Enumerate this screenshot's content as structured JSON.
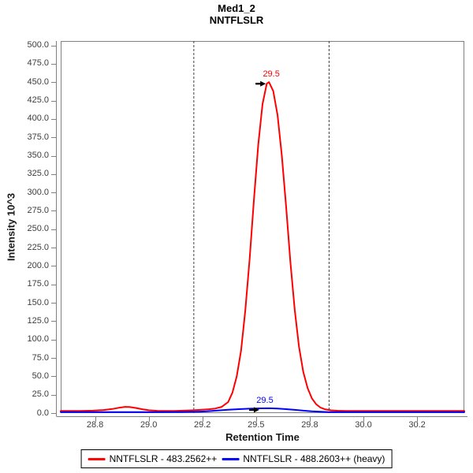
{
  "header": {
    "title_line1": "Med1_2",
    "title_line2": "NNTFLSLR"
  },
  "chart_data": {
    "type": "line",
    "title": "Med1_2 NNTFLSLR",
    "xlabel": "Retention Time",
    "ylabel": "Intensity 10^3",
    "xlim": [
      28.59,
      30.47
    ],
    "ylim": [
      0,
      506
    ],
    "grid": false,
    "legend_position": "bottom",
    "frame_color": "#808080",
    "tick_label_color": "#3d3d3d",
    "boundary_color": "#404040",
    "x_ticks": [
      {
        "value": 28.75,
        "label": "28.8"
      },
      {
        "value": 29.0,
        "label": "29.0"
      },
      {
        "value": 29.25,
        "label": "29.2"
      },
      {
        "value": 29.5,
        "label": "29.5"
      },
      {
        "value": 29.75,
        "label": "29.8"
      },
      {
        "value": 30.0,
        "label": "30.0"
      },
      {
        "value": 30.25,
        "label": "30.2"
      }
    ],
    "y_ticks": [
      {
        "value": 0,
        "label": "0.0"
      },
      {
        "value": 25,
        "label": "25.0"
      },
      {
        "value": 50,
        "label": "50.0"
      },
      {
        "value": 75,
        "label": "75.0"
      },
      {
        "value": 100,
        "label": "100.0"
      },
      {
        "value": 125,
        "label": "125.0"
      },
      {
        "value": 150,
        "label": "150.0"
      },
      {
        "value": 175,
        "label": "175.0"
      },
      {
        "value": 200,
        "label": "200.0"
      },
      {
        "value": 225,
        "label": "225.0"
      },
      {
        "value": 250,
        "label": "250.0"
      },
      {
        "value": 275,
        "label": "275.0"
      },
      {
        "value": 300,
        "label": "300.0"
      },
      {
        "value": 325,
        "label": "325.0"
      },
      {
        "value": 350,
        "label": "350.0"
      },
      {
        "value": 375,
        "label": "375.0"
      },
      {
        "value": 400,
        "label": "400.0"
      },
      {
        "value": 425,
        "label": "425.0"
      },
      {
        "value": 450,
        "label": "450.0"
      },
      {
        "value": 475,
        "label": "475.0"
      },
      {
        "value": 500,
        "label": "500.0"
      }
    ],
    "integration_boundaries": [
      29.21,
      29.84
    ],
    "series": [
      {
        "name": "NNTFLSLR - 483.2562++",
        "color": "#ff0000",
        "peak_rt": 29.5,
        "peak_height_10e3": 450,
        "points": [
          [
            28.59,
            3
          ],
          [
            28.68,
            3
          ],
          [
            28.74,
            3.3
          ],
          [
            28.79,
            4.2
          ],
          [
            28.83,
            5.6
          ],
          [
            28.86,
            7.2
          ],
          [
            28.89,
            8.5
          ],
          [
            28.91,
            8.4
          ],
          [
            28.94,
            7.0
          ],
          [
            28.97,
            5.2
          ],
          [
            29.0,
            3.9
          ],
          [
            29.04,
            3.1
          ],
          [
            29.08,
            3.0
          ],
          [
            29.12,
            3.0
          ],
          [
            29.16,
            3.3
          ],
          [
            29.2,
            3.8
          ],
          [
            29.24,
            4.4
          ],
          [
            29.28,
            5.2
          ],
          [
            29.31,
            6.2
          ],
          [
            29.34,
            8.5
          ],
          [
            29.37,
            15
          ],
          [
            29.39,
            28
          ],
          [
            29.41,
            50
          ],
          [
            29.43,
            85
          ],
          [
            29.45,
            140
          ],
          [
            29.47,
            210
          ],
          [
            29.49,
            290
          ],
          [
            29.51,
            365
          ],
          [
            29.53,
            420
          ],
          [
            29.55,
            448
          ],
          [
            29.56,
            450
          ],
          [
            29.58,
            438
          ],
          [
            29.6,
            405
          ],
          [
            29.62,
            350
          ],
          [
            29.64,
            280
          ],
          [
            29.66,
            205
          ],
          [
            29.68,
            140
          ],
          [
            29.7,
            90
          ],
          [
            29.72,
            56
          ],
          [
            29.74,
            34
          ],
          [
            29.76,
            20
          ],
          [
            29.78,
            12
          ],
          [
            29.8,
            7.5
          ],
          [
            29.82,
            5.2
          ],
          [
            29.85,
            3.8
          ],
          [
            29.88,
            3.2
          ],
          [
            29.92,
            3.0
          ],
          [
            30.0,
            3.0
          ],
          [
            30.1,
            3.0
          ],
          [
            30.2,
            3.0
          ],
          [
            30.3,
            3.0
          ],
          [
            30.4,
            3.0
          ],
          [
            30.47,
            3.0
          ]
        ]
      },
      {
        "name": "NNTFLSLR - 488.2603++ (heavy)",
        "color": "#0000ff",
        "peak_rt": 29.5,
        "peak_height_10e3": 6.5,
        "points": [
          [
            28.59,
            1.3
          ],
          [
            28.8,
            1.3
          ],
          [
            28.95,
            1.4
          ],
          [
            29.05,
            1.4
          ],
          [
            29.15,
            1.5
          ],
          [
            29.22,
            1.8
          ],
          [
            29.27,
            2.4
          ],
          [
            29.32,
            3.4
          ],
          [
            29.37,
            4.5
          ],
          [
            29.42,
            5.4
          ],
          [
            29.47,
            6.0
          ],
          [
            29.52,
            6.4
          ],
          [
            29.56,
            6.5
          ],
          [
            29.6,
            6.1
          ],
          [
            29.64,
            5.4
          ],
          [
            29.68,
            4.4
          ],
          [
            29.72,
            3.3
          ],
          [
            29.76,
            2.4
          ],
          [
            29.8,
            1.8
          ],
          [
            29.84,
            1.4
          ],
          [
            29.9,
            1.3
          ],
          [
            30.0,
            1.3
          ],
          [
            30.15,
            1.3
          ],
          [
            30.3,
            1.3
          ],
          [
            30.47,
            1.3
          ]
        ]
      }
    ],
    "annotations": [
      {
        "label": "29.5",
        "time": 29.56,
        "value": 450,
        "color": "#ff0000"
      },
      {
        "label": "29.5",
        "time": 29.53,
        "value": 6.5,
        "color": "#0000ff"
      }
    ]
  },
  "legend": {
    "items": [
      {
        "label": "NNTFLSLR - 483.2562++",
        "color": "#ff0000"
      },
      {
        "label": "NNTFLSLR - 488.2603++ (heavy)",
        "color": "#0000ff"
      }
    ]
  }
}
